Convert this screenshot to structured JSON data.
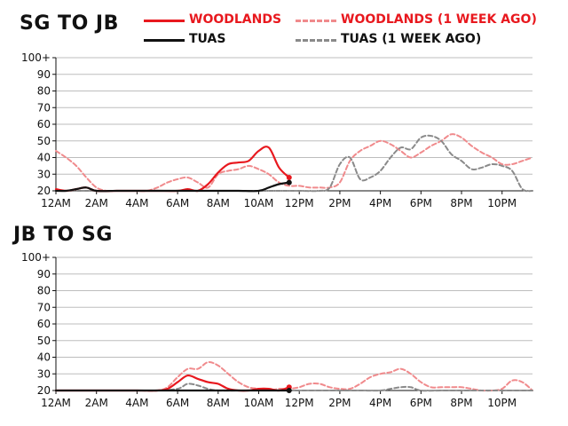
{
  "legend": {
    "woodlands": {
      "label": "WOODLANDS",
      "color": "#e8181e"
    },
    "woodlands_prev": {
      "label": "WOODLANDS (1 WEEK AGO)",
      "color": "#f08a8c"
    },
    "tuas": {
      "label": "TUAS",
      "color": "#111111"
    },
    "tuas_prev": {
      "label": "TUAS (1 WEEK AGO)",
      "color": "#8a8a8a"
    }
  },
  "chart_data": [
    {
      "type": "line",
      "title": "SG TO JB",
      "xlabel": "",
      "ylabel": "",
      "x_ticks": [
        "12AM",
        "2AM",
        "4AM",
        "6AM",
        "8AM",
        "10AM",
        "12PM",
        "2PM",
        "4PM",
        "6PM",
        "8PM",
        "10PM"
      ],
      "y_ticks": [
        "20",
        "30",
        "40",
        "50",
        "60",
        "70",
        "80",
        "90",
        "100+"
      ],
      "ylim": [
        20,
        100
      ],
      "xlim_hours": [
        0,
        23.5
      ],
      "grid": true,
      "legend": "top",
      "series": [
        {
          "name": "WOODLANDS (1 WEEK AGO)",
          "style": "dashed",
          "color": "#f08a8c",
          "x": [
            0,
            0.5,
            1,
            1.5,
            2,
            2.5,
            3,
            3.5,
            4,
            4.5,
            5,
            5.5,
            6,
            6.5,
            7,
            7.5,
            8,
            8.5,
            9,
            9.5,
            10,
            10.5,
            11,
            11.5,
            12,
            12.5,
            13,
            13.5,
            14,
            14.5,
            15,
            15.5,
            16,
            16.5,
            17,
            17.5,
            18,
            18.5,
            19,
            19.5,
            20,
            20.5,
            21,
            21.5,
            22,
            22.5,
            23,
            23.5
          ],
          "y": [
            44,
            40,
            35,
            28,
            22,
            20,
            20,
            20,
            20,
            20,
            22,
            25,
            27,
            28,
            25,
            22,
            30,
            32,
            33,
            35,
            33,
            30,
            25,
            23,
            23,
            22,
            22,
            22,
            25,
            38,
            44,
            47,
            50,
            48,
            44,
            40,
            43,
            47,
            50,
            54,
            52,
            47,
            43,
            40,
            36,
            36,
            38,
            40
          ]
        },
        {
          "name": "TUAS (1 WEEK AGO)",
          "style": "dashed",
          "color": "#8a8a8a",
          "x": [
            0,
            1,
            2,
            3,
            4,
            5,
            6,
            7,
            8,
            9,
            10,
            11,
            12,
            13,
            13.5,
            14,
            14.5,
            15,
            15.5,
            16,
            16.5,
            17,
            17.5,
            18,
            18.5,
            19,
            19.5,
            20,
            20.5,
            21,
            21.5,
            22,
            22.5,
            23,
            23.5
          ],
          "y": [
            20,
            20,
            20,
            20,
            20,
            20,
            20,
            20,
            20,
            20,
            20,
            20,
            20,
            20,
            22,
            36,
            40,
            27,
            28,
            32,
            40,
            46,
            45,
            52,
            53,
            50,
            42,
            38,
            33,
            34,
            36,
            35,
            32,
            21,
            20
          ]
        },
        {
          "name": "WOODLANDS",
          "style": "solid",
          "color": "#e8181e",
          "x": [
            0,
            0.5,
            1,
            1.5,
            2,
            3,
            4,
            5,
            6,
            6.5,
            7,
            7.5,
            8,
            8.5,
            9,
            9.5,
            10,
            10.5,
            11,
            11.5
          ],
          "y": [
            21,
            20,
            21,
            22,
            20,
            20,
            20,
            20,
            20,
            21,
            20,
            24,
            31,
            36,
            37,
            38,
            44,
            46,
            34,
            28
          ]
        },
        {
          "name": "TUAS",
          "style": "solid",
          "color": "#111111",
          "x": [
            0,
            0.5,
            1,
            1.5,
            2,
            3,
            4,
            5,
            6,
            7,
            8,
            9,
            10,
            10.5,
            11,
            11.5
          ],
          "y": [
            20,
            20,
            21,
            22,
            20,
            20,
            20,
            20,
            20,
            20,
            20,
            20,
            20,
            22,
            24,
            25
          ]
        }
      ]
    },
    {
      "type": "line",
      "title": "JB TO SG",
      "xlabel": "",
      "ylabel": "",
      "x_ticks": [
        "12AM",
        "2AM",
        "4AM",
        "6AM",
        "8AM",
        "10AM",
        "12PM",
        "2PM",
        "4PM",
        "6PM",
        "8PM",
        "10PM"
      ],
      "y_ticks": [
        "20",
        "30",
        "40",
        "50",
        "60",
        "70",
        "80",
        "90",
        "100+"
      ],
      "ylim": [
        20,
        100
      ],
      "xlim_hours": [
        0,
        23.5
      ],
      "grid": true,
      "legend": "none",
      "series": [
        {
          "name": "WOODLANDS (1 WEEK AGO)",
          "style": "dashed",
          "color": "#f08a8c",
          "x": [
            0,
            1,
            2,
            3,
            4,
            5,
            5.5,
            6,
            6.5,
            7,
            7.5,
            8,
            8.5,
            9,
            9.5,
            10,
            10.5,
            11,
            11.5,
            12,
            12.5,
            13,
            13.5,
            14,
            14.5,
            15,
            15.5,
            16,
            16.5,
            17,
            17.5,
            18,
            18.5,
            19,
            19.5,
            20,
            20.5,
            21,
            21.5,
            22,
            22.5,
            23,
            23.5
          ],
          "y": [
            20,
            20,
            20,
            20,
            20,
            20,
            22,
            28,
            33,
            33,
            37,
            35,
            30,
            25,
            22,
            21,
            20,
            21,
            21,
            22,
            24,
            24,
            22,
            21,
            21,
            24,
            28,
            30,
            31,
            33,
            30,
            25,
            22,
            22,
            22,
            22,
            21,
            20,
            20,
            21,
            26,
            25,
            20
          ]
        },
        {
          "name": "TUAS (1 WEEK AGO)",
          "style": "dashed",
          "color": "#8a8a8a",
          "x": [
            0,
            1,
            2,
            3,
            4,
            5,
            6,
            6.5,
            7,
            7.5,
            8,
            9,
            10,
            11,
            12,
            13,
            14,
            15,
            16,
            16.5,
            17,
            17.5,
            18,
            19,
            20,
            21,
            22,
            23,
            23.5
          ],
          "y": [
            20,
            20,
            20,
            20,
            20,
            20,
            21,
            24,
            23,
            21,
            20,
            20,
            20,
            20,
            20,
            20,
            20,
            20,
            20,
            21,
            22,
            22,
            20,
            20,
            20,
            20,
            20,
            20,
            20
          ]
        },
        {
          "name": "WOODLANDS",
          "style": "solid",
          "color": "#e8181e",
          "x": [
            0,
            1,
            2,
            3,
            4,
            5,
            5.5,
            6,
            6.5,
            7,
            7.5,
            8,
            8.5,
            9,
            9.5,
            10,
            10.5,
            11,
            11.5
          ],
          "y": [
            20,
            20,
            20,
            20,
            20,
            20,
            21,
            25,
            29,
            27,
            25,
            24,
            21,
            20,
            20,
            21,
            21,
            20,
            22
          ]
        },
        {
          "name": "TUAS",
          "style": "solid",
          "color": "#111111",
          "x": [
            0,
            1,
            2,
            3,
            4,
            5,
            6,
            7,
            8,
            9,
            10,
            11,
            11.5
          ],
          "y": [
            20,
            20,
            20,
            20,
            20,
            20,
            20,
            20,
            20,
            20,
            20,
            20,
            20
          ]
        }
      ]
    }
  ]
}
